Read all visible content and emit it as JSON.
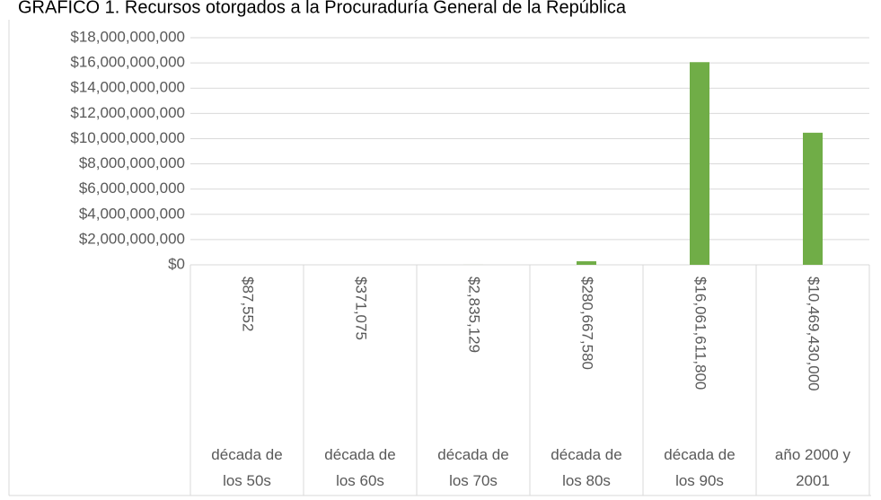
{
  "chart_data": {
    "type": "bar",
    "title": "GRÁFICO 1. Recursos otorgados a la Procuraduría General de la República",
    "categories": [
      "década de los 50s",
      "década de los 60s",
      "década de los 70s",
      "década de los 80s",
      "década de los 90s",
      "año 2000 y 2001"
    ],
    "values": [
      87552,
      371075,
      2835129,
      280667580,
      16061611800,
      10469430000
    ],
    "value_labels": [
      "$87,552",
      "$371,075",
      "$2,835,129",
      "$280,667,580",
      "$16,061,611,800",
      "$10,469,430,000"
    ],
    "color": "#70ad47",
    "ylim": [
      0,
      18000000000
    ],
    "yticks": [
      {
        "value": 0,
        "label": "$0"
      },
      {
        "value": 2000000000,
        "label": "$2,000,000,000"
      },
      {
        "value": 4000000000,
        "label": "$4,000,000,000"
      },
      {
        "value": 6000000000,
        "label": "$6,000,000,000"
      },
      {
        "value": 8000000000,
        "label": "$8,000,000,000"
      },
      {
        "value": 10000000000,
        "label": "$10,000,000,000"
      },
      {
        "value": 12000000000,
        "label": "$12,000,000,000"
      },
      {
        "value": 14000000000,
        "label": "$14,000,000,000"
      },
      {
        "value": 16000000000,
        "label": "$16,000,000,000"
      },
      {
        "value": 18000000000,
        "label": "$18,000,000,000"
      }
    ],
    "grid": true
  }
}
